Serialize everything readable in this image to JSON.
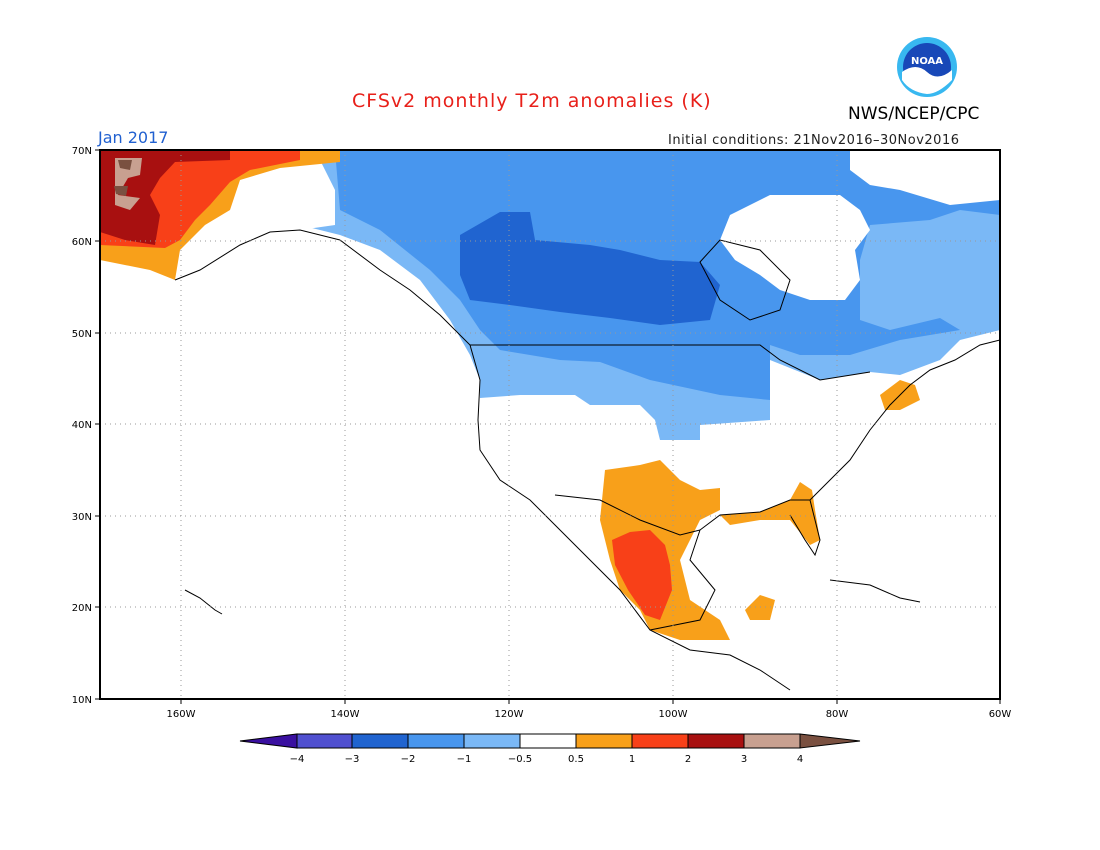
{
  "header": {
    "title": "CFSv2 monthly T2m anomalies (K)",
    "month": "Jan 2017",
    "initial_conditions": "Initial conditions: 21Nov2016–30Nov2016",
    "agency": "NWS/NCEP/CPC",
    "logo_text": "NOAA"
  },
  "map": {
    "lat_labels": [
      "70N",
      "60N",
      "50N",
      "40N",
      "30N",
      "20N",
      "10N"
    ],
    "lon_labels": [
      "160W",
      "140W",
      "120W",
      "100W",
      "80W",
      "60W"
    ],
    "colors": {
      "neg4": "#3a10a0",
      "neg3": "#5050d0",
      "neg2": "#2064d0",
      "neg1": "#4896ee",
      "neg05": "#7ab8f6",
      "zero": "#ffffff",
      "pos05": "#f8a01a",
      "pos1": "#f84018",
      "pos2": "#a81010",
      "pos3": "#c8a090",
      "pos4": "#7a5040"
    }
  },
  "legend": {
    "labels": [
      "−4",
      "−3",
      "−2",
      "−1",
      "−0.5",
      "0.5",
      "1",
      "2",
      "3",
      "4"
    ]
  }
}
